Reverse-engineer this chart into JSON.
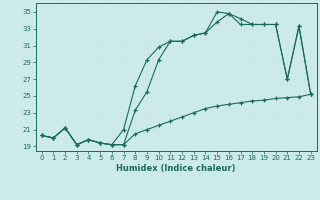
{
  "xlabel": "Humidex (Indice chaleur)",
  "bg_color": "#cceaea",
  "grid_color": "#e8f8f8",
  "line_color": "#1a6b5a",
  "xlim": [
    -0.5,
    23.5
  ],
  "ylim": [
    18.5,
    36
  ],
  "yticks": [
    19,
    21,
    23,
    25,
    27,
    29,
    31,
    33,
    35
  ],
  "xticks": [
    0,
    1,
    2,
    3,
    4,
    5,
    6,
    7,
    8,
    9,
    10,
    11,
    12,
    13,
    14,
    15,
    16,
    17,
    18,
    19,
    20,
    21,
    22,
    23
  ],
  "line1_x": [
    0,
    1,
    2,
    3,
    4,
    5,
    6,
    7,
    8,
    9,
    10,
    11,
    12,
    13,
    14,
    15,
    16,
    17,
    18,
    19,
    20,
    21,
    22,
    23
  ],
  "line1_y": [
    20.3,
    20.0,
    21.2,
    19.2,
    19.8,
    19.4,
    19.2,
    19.2,
    23.3,
    25.5,
    29.3,
    31.5,
    31.5,
    32.2,
    32.5,
    35.0,
    34.8,
    33.5,
    33.5,
    33.5,
    33.5,
    27.0,
    33.3,
    25.2
  ],
  "line2_x": [
    0,
    1,
    2,
    3,
    4,
    5,
    6,
    7,
    8,
    9,
    10,
    11,
    12,
    13,
    14,
    15,
    16,
    17,
    18,
    19,
    20,
    21,
    22,
    23
  ],
  "line2_y": [
    20.3,
    20.0,
    21.2,
    19.2,
    19.8,
    19.4,
    19.2,
    21.0,
    26.2,
    29.3,
    30.8,
    31.5,
    31.5,
    32.2,
    32.5,
    33.8,
    34.8,
    34.2,
    33.5,
    33.5,
    33.5,
    27.0,
    33.3,
    25.2
  ],
  "line3_x": [
    0,
    1,
    2,
    3,
    4,
    5,
    6,
    7,
    8,
    9,
    10,
    11,
    12,
    13,
    14,
    15,
    16,
    17,
    18,
    19,
    20,
    21,
    22,
    23
  ],
  "line3_y": [
    20.3,
    20.0,
    21.2,
    19.2,
    19.8,
    19.4,
    19.2,
    19.2,
    20.5,
    21.0,
    21.5,
    22.0,
    22.5,
    23.0,
    23.5,
    23.8,
    24.0,
    24.2,
    24.4,
    24.5,
    24.7,
    24.8,
    24.9,
    25.2
  ]
}
